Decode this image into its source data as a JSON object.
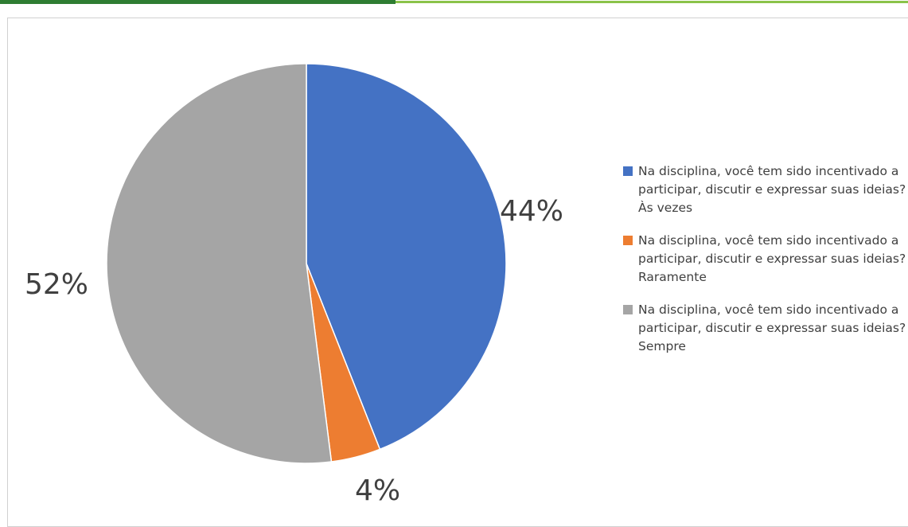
{
  "chart_data": {
    "type": "pie",
    "title": "",
    "legend_position": "right",
    "start_angle": "top",
    "direction": "clockwise",
    "slices": [
      {
        "label": "Na disciplina, você tem sido incentivado a participar, discutir e expressar suas ideias? Às vezes",
        "value": 44,
        "display": "44%",
        "color": "#4472c4"
      },
      {
        "label": "Na disciplina, você tem sido incentivado a participar, discutir e expressar suas ideias? Raramente",
        "value": 4,
        "display": "4%",
        "color": "#ed7d31"
      },
      {
        "label": "Na disciplina, você tem sido incentivado a participar, discutir e expressar suas ideias? Sempre",
        "value": 52,
        "display": "52%",
        "color": "#a5a5a5"
      }
    ]
  }
}
